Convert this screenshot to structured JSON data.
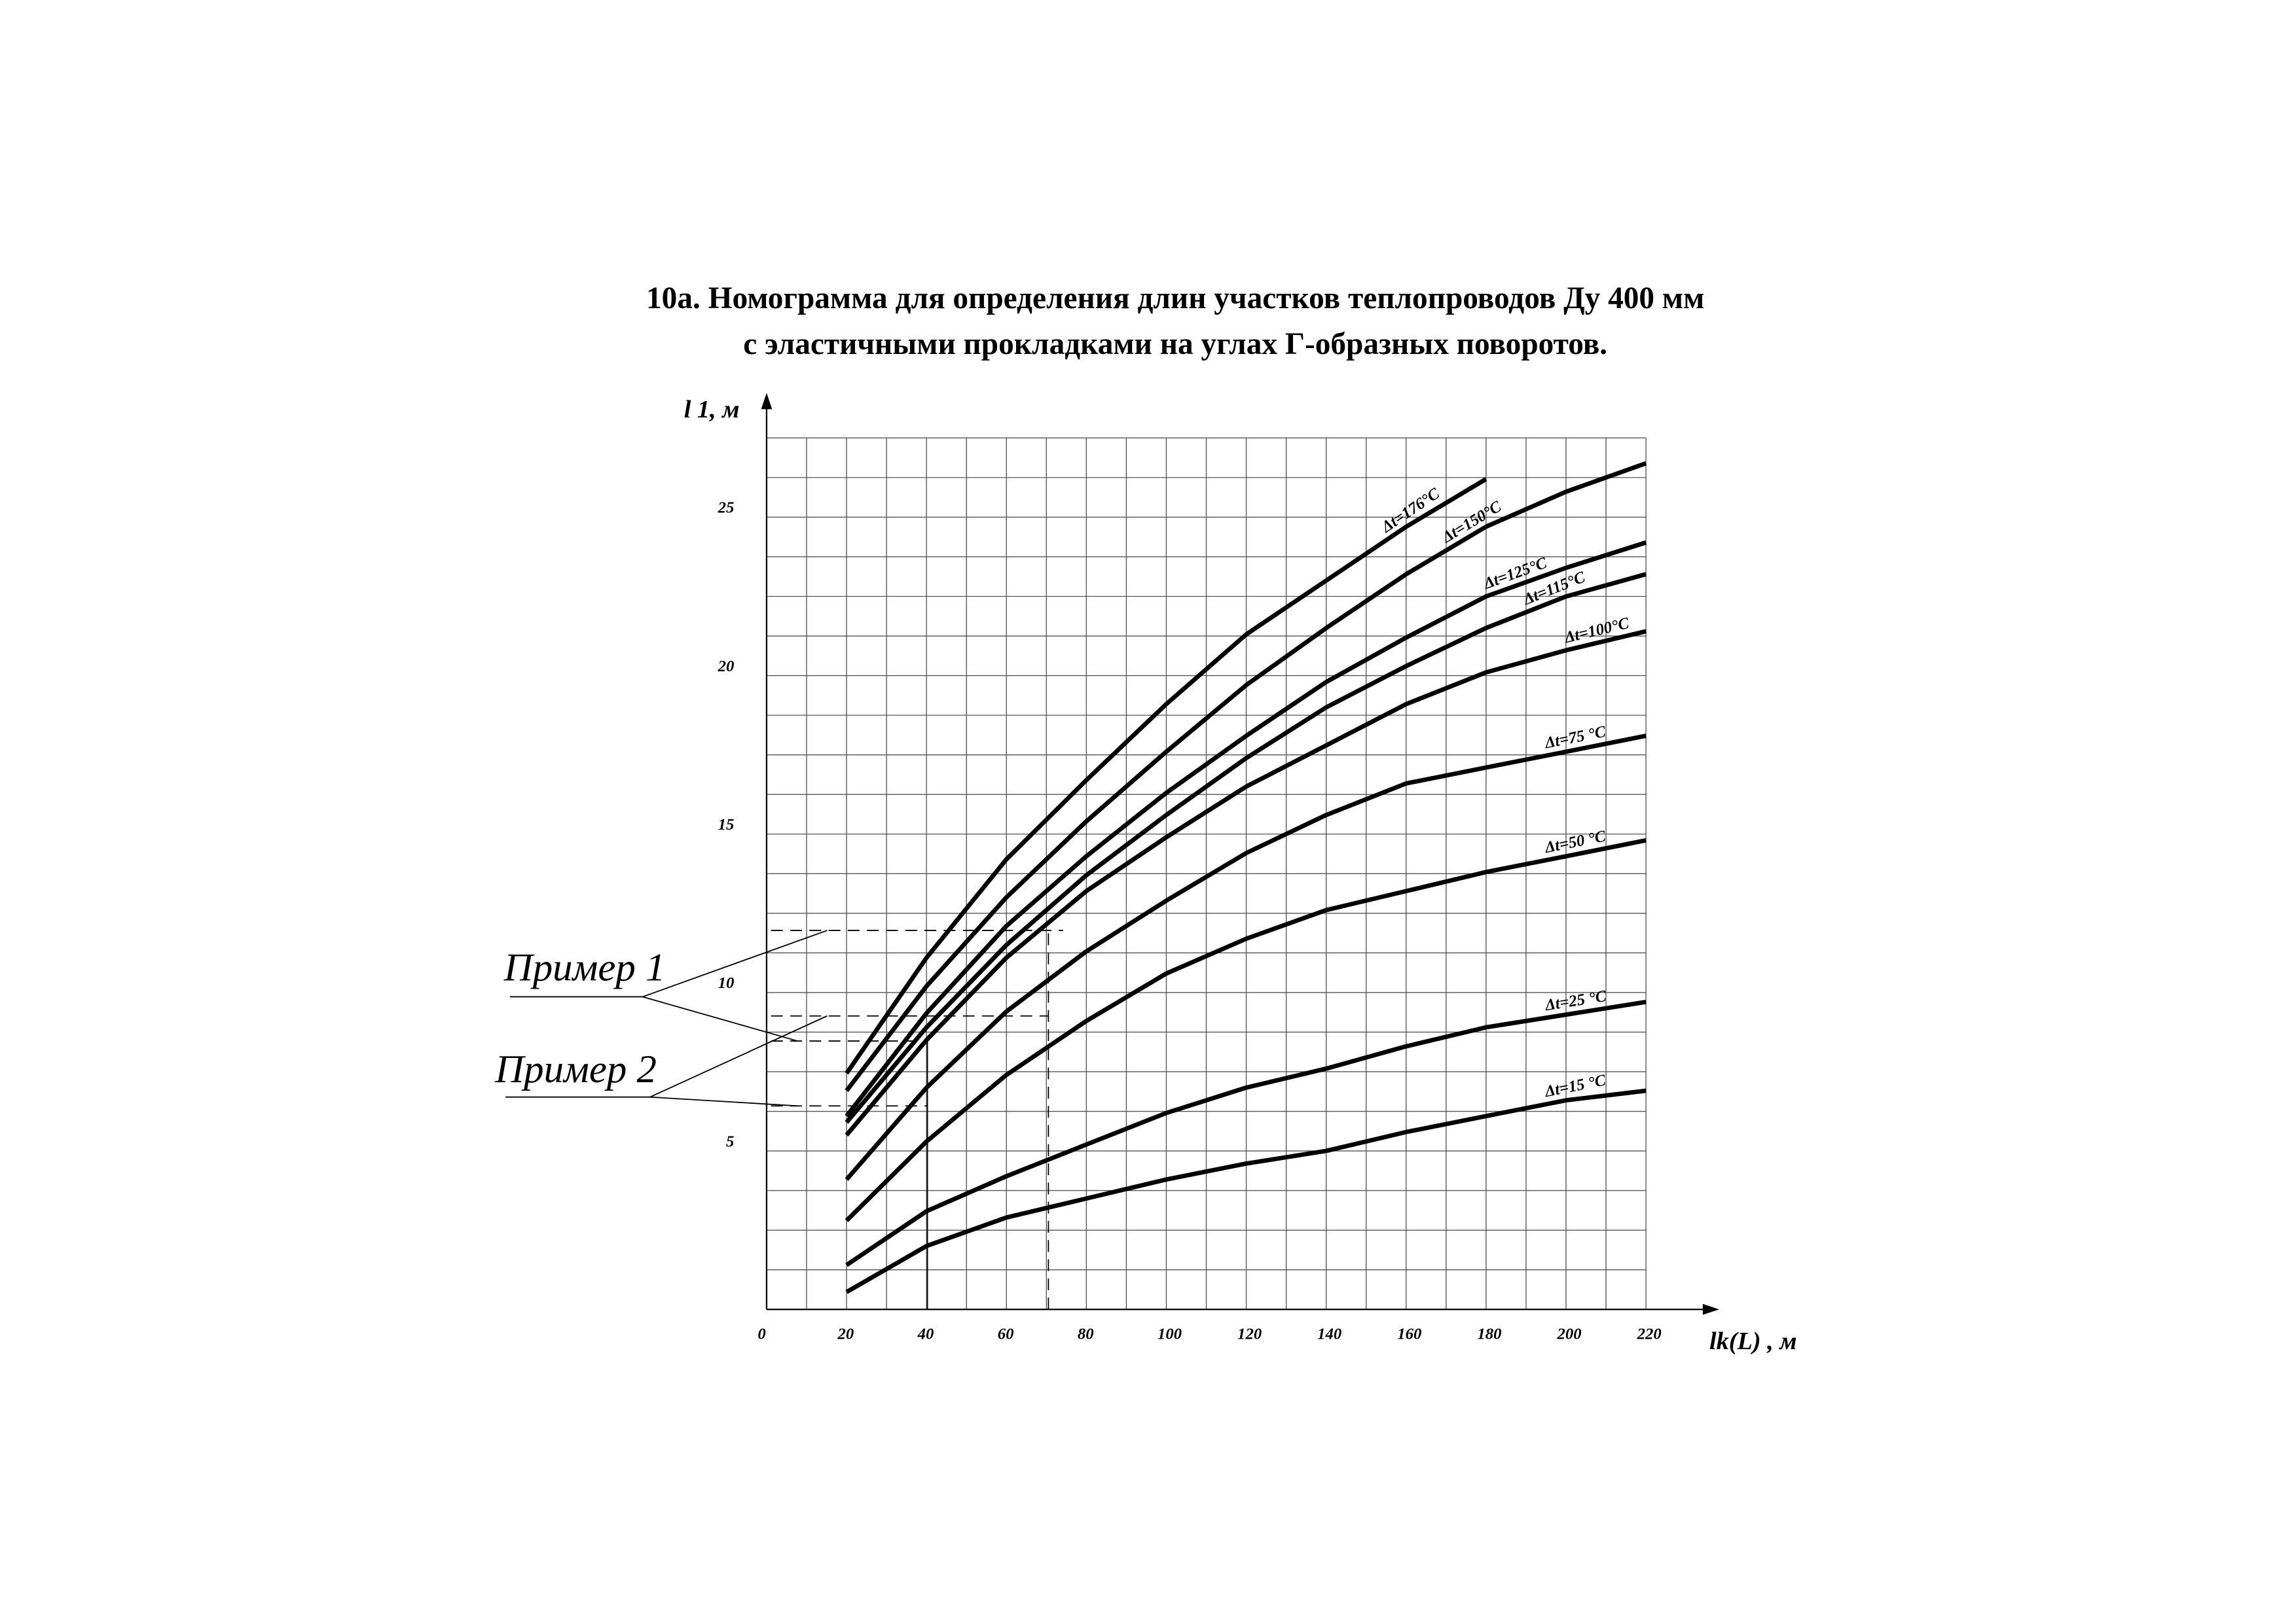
{
  "chart_data": {
    "type": "line",
    "title": "10а. Номограмма для определения длин участков теплопроводов Ду 400 мм",
    "subtitle": "с эластичными прокладками на углах Г-образных поворотов.",
    "y_label": "l 1, м",
    "x_label": "lk(L) , м",
    "annotations": [
      "Пример 1",
      "Пример 2"
    ],
    "x": [
      20,
      40,
      60,
      80,
      100,
      120,
      140,
      160,
      180,
      200,
      220
    ],
    "series": [
      {
        "name": "Δt=176°C",
        "color": "#000000",
        "values": [
          7.45,
          11.1,
          14.2,
          16.7,
          19.1,
          21.3,
          23.0,
          24.7,
          26.2,
          null,
          null
        ]
      },
      {
        "name": "Δt=150°C",
        "color": "#000000",
        "values": [
          6.9,
          10.2,
          13.0,
          15.4,
          17.6,
          19.7,
          21.5,
          23.2,
          24.7,
          25.8,
          26.7
        ]
      },
      {
        "name": "Δt=125°C",
        "color": "#000000",
        "values": [
          6.1,
          9.35,
          12.1,
          14.3,
          16.3,
          18.1,
          19.8,
          21.2,
          22.5,
          23.4,
          24.2
        ]
      },
      {
        "name": "Δt=115°C",
        "color": "#000000",
        "values": [
          5.9,
          8.9,
          11.5,
          13.7,
          15.6,
          17.4,
          19.0,
          20.3,
          21.5,
          22.5,
          23.2
        ]
      },
      {
        "name": "Δt=100°C",
        "color": "#000000",
        "values": [
          5.5,
          8.5,
          11.1,
          13.2,
          14.9,
          16.5,
          17.8,
          19.1,
          20.1,
          20.8,
          21.4
        ]
      },
      {
        "name": "Δt=75 °C",
        "color": "#000000",
        "values": [
          4.1,
          7.0,
          9.4,
          11.3,
          12.9,
          14.4,
          15.6,
          16.6,
          17.1,
          17.6,
          18.1
        ]
      },
      {
        "name": "Δt=50 °C",
        "color": "#000000",
        "values": [
          2.8,
          5.3,
          7.4,
          9.1,
          10.6,
          11.7,
          12.6,
          13.2,
          13.8,
          14.3,
          14.8
        ]
      },
      {
        "name": "Δt=25 °C",
        "color": "#000000",
        "values": [
          1.4,
          3.1,
          4.2,
          5.2,
          6.2,
          7.0,
          7.6,
          8.3,
          8.9,
          9.3,
          9.7
        ]
      },
      {
        "name": "Δt=15 °C",
        "color": "#000000",
        "values": [
          0.55,
          2.0,
          2.9,
          3.5,
          4.1,
          4.6,
          5.0,
          5.6,
          6.1,
          6.6,
          6.9
        ]
      }
    ],
    "xlim": [
      0,
      220
    ],
    "ylim": [
      0,
      27.5
    ],
    "xticks": [
      0,
      20,
      40,
      60,
      80,
      100,
      120,
      140,
      160,
      180,
      200,
      220
    ],
    "yticks": [
      5,
      10,
      15,
      20,
      25
    ],
    "x_gridlines": [
      0,
      10,
      20,
      30,
      40,
      50,
      60,
      70,
      80,
      90,
      100,
      110,
      120,
      130,
      140,
      150,
      160,
      170,
      180,
      190,
      200,
      210,
      220
    ],
    "y_gridlines": [
      0,
      1.25,
      2.5,
      3.75,
      5,
      6.25,
      7.5,
      8.75,
      10,
      11.25,
      12.5,
      13.75,
      15,
      16.25,
      17.5,
      18.75,
      20,
      21.25,
      22.5,
      23.75,
      25,
      26.25,
      27.5
    ],
    "grid": true
  }
}
